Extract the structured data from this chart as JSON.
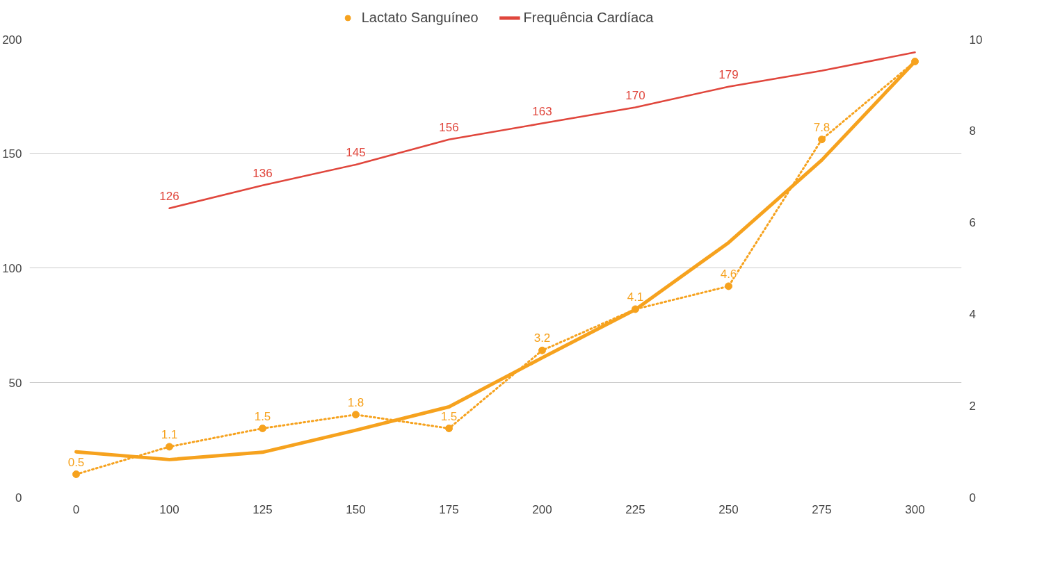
{
  "chart_data": {
    "type": "line",
    "categories": [
      "0",
      "100",
      "125",
      "150",
      "175",
      "200",
      "225",
      "250",
      "275",
      "300"
    ],
    "series": [
      {
        "name": "Lactato Sanguíneo",
        "color": "#f6a21e",
        "axis": "y2",
        "marker": "circle",
        "line_style": "dotted",
        "values": [
          0.5,
          1.1,
          1.5,
          1.8,
          1.5,
          3.2,
          4.1,
          4.6,
          7.8,
          9.5
        ],
        "value_labels": [
          "0.5",
          "1.1",
          "1.5",
          "1.8",
          "1.5",
          "3.2",
          "4.1",
          "4.6",
          "7.8",
          null
        ]
      },
      {
        "name": "Frequência Cardíaca",
        "color": "#e0463c",
        "marker": "none",
        "line_style": "solid",
        "values": [
          null,
          126,
          136,
          145,
          156,
          163,
          170,
          179,
          186,
          194
        ],
        "value_labels": [
          null,
          "126",
          "136",
          "145",
          "156",
          "163",
          "170",
          "179",
          null,
          null
        ]
      },
      {
        "type": "line",
        "color": "#f6a21e",
        "axis": "y2",
        "marker": "none",
        "line_style": "solid",
        "x": [
          "0",
          "100",
          "125",
          "150",
          "175",
          "200",
          "225",
          "250",
          "275",
          "300"
        ],
        "values": [
          0.99,
          0.82,
          0.98,
          1.46,
          1.97,
          3.04,
          4.09,
          5.55,
          7.35,
          9.5
        ]
      }
    ],
    "ylim": [
      0,
      200
    ],
    "yticks": [
      0,
      50,
      100,
      150,
      200
    ],
    "y2lim": [
      0,
      10
    ],
    "y2ticks": [
      0,
      2,
      4,
      6,
      8,
      10
    ],
    "grid": "y",
    "legend": "top"
  }
}
